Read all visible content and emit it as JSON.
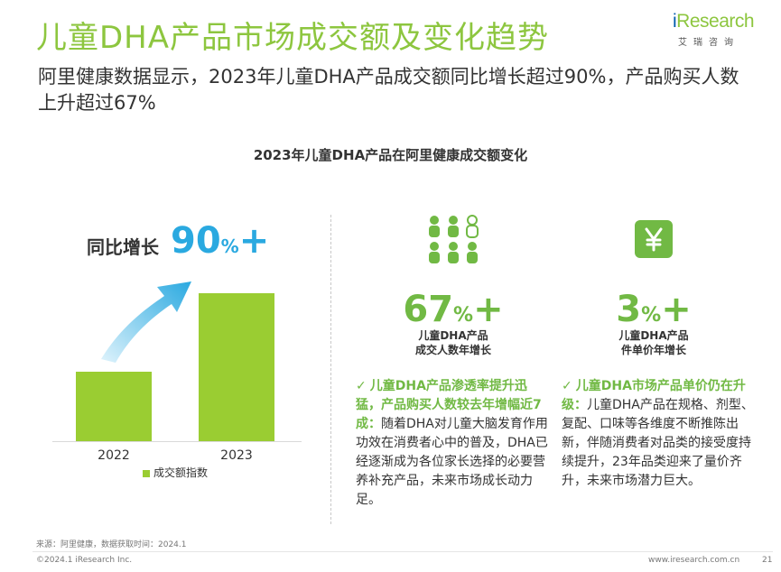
{
  "header": {
    "title": "儿童DHA产品市场成交额及变化趋势",
    "subtitle": "阿里健康数据显示，2023年儿童DHA产品成交额同比增长超过90%，产品购买人数上升超过67%"
  },
  "logo": {
    "prefix": "i",
    "word": "Research",
    "cn": "艾瑞咨询",
    "brand_color": "#8dc63f"
  },
  "chart_data": {
    "type": "bar",
    "title": "2023年儿童DHA产品在阿里健康成交额变化",
    "categories": [
      "2022",
      "2023"
    ],
    "series": [
      {
        "name": "成交额指数",
        "values": [
          47,
          100
        ]
      }
    ],
    "ylim": [
      0,
      110
    ],
    "legend_position": "bottom",
    "annotation": {
      "label": "同比增长",
      "value": "90",
      "unit": "%",
      "suffix": "+"
    },
    "bar_color": "#9acd32",
    "arrow_color": "#2aa9e0"
  },
  "stats": [
    {
      "icon": "people-icon",
      "value": "67",
      "unit": "%",
      "suffix": "+",
      "label_line1": "儿童DHA产品",
      "label_line2": "成交人数年增长"
    },
    {
      "icon": "yen-icon",
      "value": "3",
      "unit": "%",
      "suffix": "+",
      "label_line1": "儿童DHA产品",
      "label_line2": "件单价年增长"
    }
  ],
  "points": [
    {
      "highlight": "儿童DHA产品渗透率提升迅猛，产品购买人数较去年增幅近7成：",
      "body": "随着DHA对儿童大脑发育作用功效在消费者心中的普及，DHA已经逐渐成为各位家长选择的必要营养补充产品，未来市场成长动力足。"
    },
    {
      "highlight": "儿童DHA市场产品单价仍在升级：",
      "body": "儿童DHA产品在规格、剂型、复配、口味等各维度不断推陈出新，伴随消费者对品类的接受度持续提升，23年品类迎来了量价齐升，未来市场潜力巨大。"
    }
  ],
  "footer": {
    "source": "来源：阿里健康，数据获取时间：2024.1",
    "copyright": "©2024.1 iResearch Inc.",
    "website": "www.iresearch.com.cn",
    "page": "21"
  },
  "colors": {
    "green": "#71b944",
    "bar": "#9acd32",
    "blue": "#2aa9e0"
  }
}
